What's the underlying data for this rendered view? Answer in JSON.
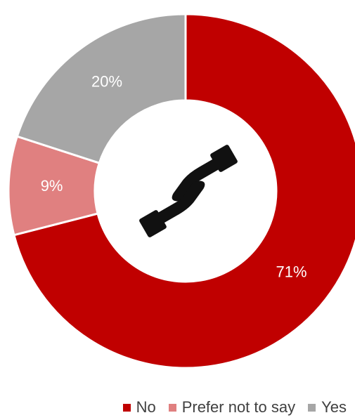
{
  "chart_data": {
    "type": "donut",
    "slices": [
      {
        "label": "No",
        "value": 71,
        "display": "71%",
        "color": "#C00000"
      },
      {
        "label": "Prefer not to say",
        "value": 9,
        "display": "9%",
        "color": "#E08080"
      },
      {
        "label": "Yes",
        "value": 20,
        "display": "20%",
        "color": "#A6A6A6"
      }
    ],
    "start": "12 o'clock, clockwise",
    "legend": {
      "position": "bottom-right",
      "entries": [
        "No",
        "Prefer not to say",
        "Yes"
      ]
    },
    "center_icon": "handshake-icon",
    "label_color": "#FFFFFF"
  }
}
